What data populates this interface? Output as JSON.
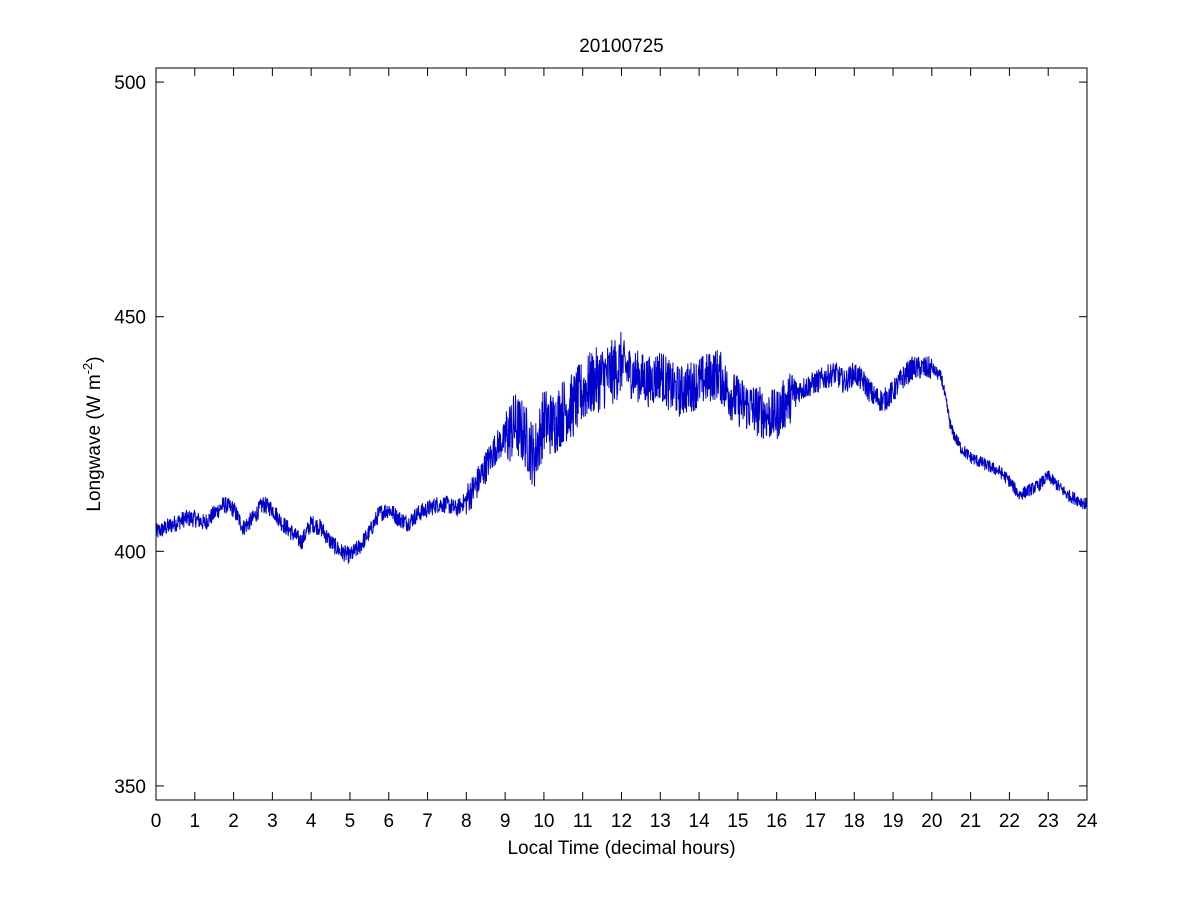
{
  "chart_data": {
    "type": "line",
    "title": "20100725",
    "xlabel": "Local Time (decimal hours)",
    "ylabel_main": "Longwave (W m",
    "ylabel_sup": "-2",
    "ylabel_close": ")",
    "xlim": [
      0,
      24
    ],
    "ylim": [
      347,
      503
    ],
    "x_ticks": [
      0,
      1,
      2,
      3,
      4,
      5,
      6,
      7,
      8,
      9,
      10,
      11,
      12,
      13,
      14,
      15,
      16,
      17,
      18,
      19,
      20,
      21,
      22,
      23,
      24
    ],
    "y_ticks": [
      350,
      400,
      450,
      500
    ],
    "grid": false,
    "line_color": "#0000cc",
    "series": [
      {
        "x": [
          0,
          0.25,
          0.5,
          0.75,
          1,
          1.25,
          1.5,
          1.75,
          2,
          2.25,
          2.5,
          2.75,
          3,
          3.25,
          3.5,
          3.75,
          4,
          4.25,
          4.5,
          4.75,
          5,
          5.25,
          5.5,
          5.75,
          6,
          6.25,
          6.5,
          6.75,
          7,
          7.25,
          7.5,
          7.75,
          8,
          8.25,
          8.5,
          8.75,
          9,
          9.25,
          9.5,
          9.75,
          10,
          10.25,
          10.5,
          10.75,
          11,
          11.25,
          11.5,
          11.75,
          12,
          12.25,
          12.5,
          12.75,
          13,
          13.25,
          13.5,
          13.75,
          14,
          14.25,
          14.5,
          14.75,
          15,
          15.25,
          15.5,
          15.75,
          16,
          16.25,
          16.5,
          16.75,
          17,
          17.25,
          17.5,
          17.75,
          18,
          18.25,
          18.5,
          18.75,
          19,
          19.25,
          19.5,
          19.75,
          20,
          20.25,
          20.5,
          20.75,
          21,
          21.25,
          21.5,
          21.75,
          22,
          22.25,
          22.5,
          22.75,
          23,
          23.25,
          23.5,
          23.75,
          24
        ],
        "values": [
          404,
          405,
          406,
          407,
          407,
          406,
          408,
          410,
          409,
          405,
          407,
          410,
          409,
          406,
          404,
          402,
          406,
          405,
          402,
          400,
          399,
          401,
          404,
          408,
          409,
          407,
          406,
          408,
          409,
          410,
          410,
          409,
          411,
          414,
          418,
          422,
          424,
          427,
          425,
          420,
          428,
          427,
          430,
          431,
          434,
          436,
          437,
          438,
          440,
          438,
          437,
          436,
          438,
          435,
          434,
          435,
          436,
          437,
          438,
          434,
          432,
          431,
          430,
          429,
          429,
          432,
          434,
          435,
          436,
          437,
          438,
          436,
          438,
          436,
          433,
          432,
          434,
          437,
          439,
          439,
          439,
          437,
          426,
          422,
          420,
          419,
          418,
          417,
          415,
          412,
          413,
          414,
          416,
          414,
          412,
          411,
          410
        ]
      }
    ]
  }
}
